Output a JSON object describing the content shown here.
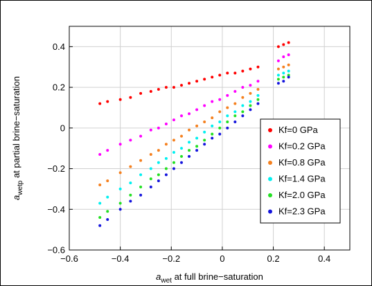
{
  "chart_data": {
    "type": "scatter",
    "xlabel": {
      "symbol": "a",
      "sub": "wet",
      "text": " at full brine−saturation"
    },
    "ylabel": {
      "symbol": "a",
      "sub": "wetp",
      "text": " at partial brine−saturation"
    },
    "x": [
      -0.48,
      -0.45,
      -0.4,
      -0.36,
      -0.32,
      -0.28,
      -0.25,
      -0.22,
      -0.19,
      -0.16,
      -0.13,
      -0.1,
      -0.07,
      -0.04,
      -0.01,
      0.02,
      0.05,
      0.08,
      0.11,
      0.14,
      0.22,
      0.24,
      0.26
    ],
    "series": [
      {
        "name": "Kf=0 GPa",
        "color": "#ff0000",
        "values": [
          0.12,
          0.13,
          0.14,
          0.15,
          0.17,
          0.18,
          0.19,
          0.2,
          0.2,
          0.21,
          0.22,
          0.23,
          0.24,
          0.25,
          0.26,
          0.27,
          0.27,
          0.28,
          0.29,
          0.3,
          0.4,
          0.41,
          0.42
        ]
      },
      {
        "name": "Kf=0.2 GPa",
        "color": "#ff00ff",
        "values": [
          -0.13,
          -0.11,
          -0.08,
          -0.06,
          -0.04,
          -0.01,
          0,
          0.02,
          0.04,
          0.06,
          0.07,
          0.09,
          0.11,
          0.13,
          0.14,
          0.16,
          0.18,
          0.2,
          0.21,
          0.23,
          0.33,
          0.35,
          0.36
        ]
      },
      {
        "name": "Kf=0.8 GPa",
        "color": "#f5801e",
        "values": [
          -0.28,
          -0.26,
          -0.22,
          -0.19,
          -0.16,
          -0.13,
          -0.11,
          -0.08,
          -0.06,
          -0.04,
          -0.01,
          0.01,
          0.03,
          0.05,
          0.08,
          0.1,
          0.12,
          0.15,
          0.17,
          0.19,
          0.29,
          0.3,
          0.31
        ]
      },
      {
        "name": "Kf=1.4 GPa",
        "color": "#00f0f0",
        "values": [
          -0.37,
          -0.34,
          -0.3,
          -0.27,
          -0.23,
          -0.2,
          -0.17,
          -0.15,
          -0.12,
          -0.1,
          -0.07,
          -0.05,
          -0.02,
          0.01,
          0.03,
          0.06,
          0.08,
          0.11,
          0.13,
          0.16,
          0.26,
          0.27,
          0.28
        ]
      },
      {
        "name": "Kf=2.0 GPa",
        "color": "#22e022",
        "values": [
          -0.44,
          -0.41,
          -0.37,
          -0.33,
          -0.29,
          -0.25,
          -0.23,
          -0.2,
          -0.17,
          -0.14,
          -0.11,
          -0.09,
          -0.06,
          -0.03,
          0,
          0.03,
          0.06,
          0.08,
          0.11,
          0.14,
          0.24,
          0.25,
          0.26
        ]
      },
      {
        "name": "Kf=2.3 GPa",
        "color": "#1515dd",
        "values": [
          -0.48,
          -0.45,
          -0.4,
          -0.36,
          -0.33,
          -0.29,
          -0.26,
          -0.23,
          -0.2,
          -0.17,
          -0.14,
          -0.11,
          -0.08,
          -0.05,
          -0.03,
          0,
          0.03,
          0.06,
          0.09,
          0.12,
          0.22,
          0.23,
          0.25
        ]
      }
    ],
    "xlim": [
      -0.6,
      0.5
    ],
    "ylim": [
      -0.6,
      0.5
    ],
    "xticks": [
      {
        "value": -0.6,
        "label": "−0.6"
      },
      {
        "value": -0.4,
        "label": "−0.4"
      },
      {
        "value": -0.2,
        "label": "−0.2"
      },
      0,
      0.2,
      0.4
    ],
    "yticks": [
      {
        "value": -0.6,
        "label": "−0.6"
      },
      {
        "value": -0.4,
        "label": "−0.4"
      },
      {
        "value": -0.2,
        "label": "−0.2"
      },
      0,
      0.2,
      0.4
    ],
    "grid": true,
    "legend": "right"
  }
}
